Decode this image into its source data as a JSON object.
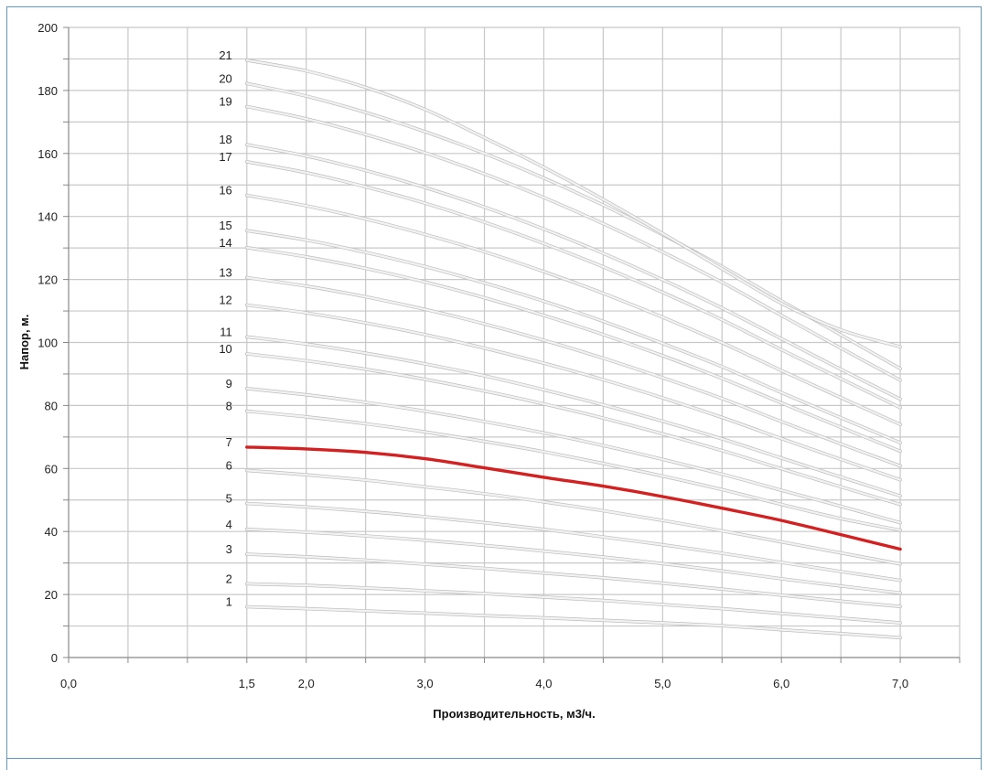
{
  "chart_data": {
    "type": "line",
    "title": "",
    "xlabel": "Производительность, м3/ч.",
    "ylabel": "Напор, м.",
    "xlim": [
      0,
      7.5
    ],
    "ylim": [
      0,
      200
    ],
    "x_ticks": [
      0,
      1.5,
      2,
      3,
      4,
      5,
      6,
      7
    ],
    "x_tick_labels": [
      "0,0",
      "1,5",
      "2,0",
      "3,0",
      "4,0",
      "5,0",
      "6,0",
      "7,0"
    ],
    "y_ticks": [
      0,
      20,
      40,
      60,
      80,
      100,
      120,
      140,
      160,
      180,
      200
    ],
    "y_tick_labels": [
      "0",
      "20",
      "40",
      "60",
      "80",
      "100",
      "120",
      "140",
      "160",
      "180",
      "200"
    ],
    "grid": true,
    "legend": "none",
    "colors": {
      "curve": "#d8d8d8",
      "highlight": "#d42020",
      "grid": "#c8c8c8",
      "frame": "#5b9bd5"
    },
    "highlight_series": "7",
    "x": [
      1.5,
      2.0,
      2.5,
      3.0,
      3.5,
      4.0,
      4.5,
      5.0,
      5.5,
      6.0,
      6.5,
      7.0
    ],
    "series": [
      {
        "name": "1",
        "values": [
          16.1,
          15.5,
          14.8,
          14.1,
          13.3,
          12.6,
          11.8,
          11.0,
          10.1,
          8.8,
          7.6,
          6.3
        ]
      },
      {
        "name": "2",
        "values": [
          23.4,
          22.9,
          22.1,
          21.2,
          20.3,
          19.2,
          18.1,
          16.8,
          15.5,
          14.0,
          12.5,
          11.0
        ]
      },
      {
        "name": "3",
        "values": [
          32.8,
          32.0,
          30.9,
          29.6,
          28.3,
          26.8,
          25.3,
          23.6,
          21.7,
          19.8,
          17.9,
          16.2
        ]
      },
      {
        "name": "4",
        "values": [
          40.7,
          39.8,
          38.6,
          37.2,
          35.6,
          33.8,
          31.9,
          29.8,
          27.5,
          25.0,
          22.7,
          20.5
        ]
      },
      {
        "name": "5",
        "values": [
          48.9,
          47.8,
          46.4,
          44.7,
          42.8,
          40.7,
          38.3,
          35.8,
          33.1,
          30.2,
          27.3,
          24.5
        ]
      },
      {
        "name": "6",
        "values": [
          59.4,
          58.0,
          56.3,
          54.2,
          52.0,
          49.4,
          46.6,
          43.5,
          40.2,
          36.7,
          33.2,
          29.7
        ]
      },
      {
        "name": "7",
        "values": [
          66.8,
          66.2,
          65.1,
          63.1,
          60.2,
          57.2,
          54.4,
          51.1,
          47.4,
          43.5,
          39.0,
          34.4
        ]
      },
      {
        "name": "8",
        "values": [
          78.2,
          76.4,
          74.2,
          71.6,
          68.6,
          65.3,
          61.6,
          57.6,
          53.3,
          48.6,
          44.1,
          40.4
        ]
      },
      {
        "name": "9",
        "values": [
          85.4,
          83.4,
          81.0,
          78.2,
          74.9,
          71.3,
          67.3,
          62.9,
          58.2,
          53.1,
          48.0,
          42.8
        ]
      },
      {
        "name": "10",
        "values": [
          96.4,
          94.2,
          91.5,
          88.3,
          84.6,
          80.5,
          76.0,
          71.0,
          65.7,
          59.9,
          54.2,
          48.6
        ]
      },
      {
        "name": "11",
        "values": [
          101.8,
          99.5,
          96.6,
          93.2,
          89.4,
          85.0,
          80.2,
          75.0,
          69.4,
          63.3,
          57.3,
          51.3
        ]
      },
      {
        "name": "12",
        "values": [
          111.9,
          109.4,
          106.2,
          102.5,
          98.2,
          93.4,
          88.2,
          82.4,
          76.2,
          69.5,
          62.9,
          56.4
        ]
      },
      {
        "name": "13",
        "values": [
          120.6,
          117.9,
          114.5,
          110.5,
          105.9,
          100.7,
          95.0,
          88.8,
          82.2,
          74.9,
          67.8,
          60.8
        ]
      },
      {
        "name": "14",
        "values": [
          130.1,
          127.2,
          123.5,
          119.2,
          114.2,
          108.6,
          102.5,
          95.8,
          88.6,
          80.8,
          73.1,
          65.5
        ]
      },
      {
        "name": "15",
        "values": [
          135.5,
          132.5,
          128.6,
          124.1,
          118.9,
          113.1,
          106.7,
          99.7,
          92.3,
          84.1,
          76.1,
          68.2
        ]
      },
      {
        "name": "16",
        "values": [
          146.7,
          143.4,
          139.2,
          134.3,
          128.8,
          122.5,
          115.6,
          108.0,
          99.9,
          91.1,
          82.5,
          74.0
        ]
      },
      {
        "name": "17",
        "values": [
          157.4,
          153.9,
          149.4,
          144.2,
          138.2,
          131.4,
          124.0,
          115.9,
          107.2,
          97.7,
          88.5,
          79.3
        ]
      },
      {
        "name": "18",
        "values": [
          162.8,
          159.2,
          154.6,
          149.2,
          143.0,
          136.0,
          128.3,
          119.9,
          110.9,
          101.2,
          91.5,
          82.0
        ]
      },
      {
        "name": "19",
        "values": [
          174.9,
          171.0,
          166.0,
          160.2,
          153.5,
          146.0,
          137.7,
          128.7,
          119.1,
          108.6,
          98.2,
          88.0
        ]
      },
      {
        "name": "20",
        "values": [
          182.2,
          178.2,
          173.0,
          166.9,
          160.0,
          152.2,
          143.6,
          134.2,
          124.1,
          113.2,
          102.4,
          91.7
        ]
      },
      {
        "name": "21",
        "values": [
          189.6,
          186.2,
          181.0,
          174.0,
          165.0,
          155.6,
          145.4,
          134.6,
          123.4,
          112.4,
          104.0,
          98.6
        ]
      }
    ]
  }
}
